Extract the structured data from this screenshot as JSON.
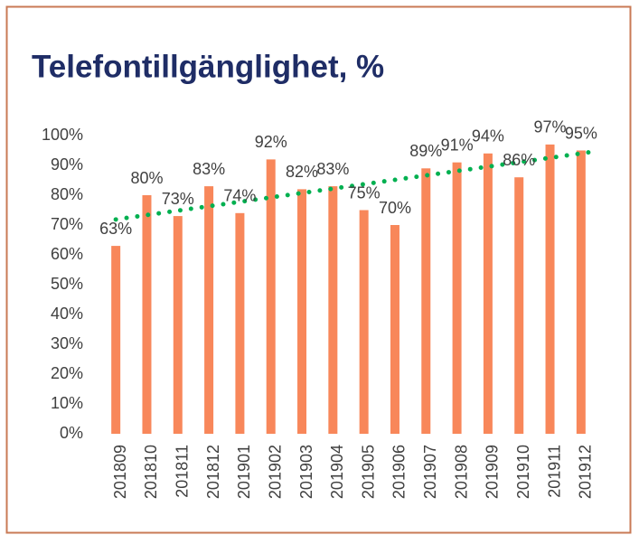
{
  "chart_data": {
    "type": "bar",
    "title": "Telefontillgänglighet, %",
    "categories": [
      "201809",
      "201810",
      "201811",
      "201812",
      "201901",
      "201902",
      "201903",
      "201904",
      "201905",
      "201906",
      "201907",
      "201908",
      "201909",
      "201910",
      "201911",
      "201912"
    ],
    "values": [
      63,
      80,
      73,
      83,
      74,
      92,
      82,
      83,
      75,
      70,
      89,
      91,
      94,
      86,
      97,
      95
    ],
    "value_labels": [
      "63%",
      "80%",
      "73%",
      "83%",
      "74%",
      "92%",
      "82%",
      "83%",
      "75%",
      "70%",
      "89%",
      "91%",
      "94%",
      "86%",
      "97%",
      "95%"
    ],
    "color": "#f8875a",
    "ylim": [
      0,
      100
    ],
    "yticks": [
      {
        "value": 0,
        "label": "0%"
      },
      {
        "value": 10,
        "label": "10%"
      },
      {
        "value": 20,
        "label": "20%"
      },
      {
        "value": 30,
        "label": "30%"
      },
      {
        "value": 40,
        "label": "40%"
      },
      {
        "value": 50,
        "label": "50%"
      },
      {
        "value": 60,
        "label": "60%"
      },
      {
        "value": 70,
        "label": "70%"
      },
      {
        "value": 80,
        "label": "80%"
      },
      {
        "value": 90,
        "label": "90%"
      },
      {
        "value": 100,
        "label": "100%"
      }
    ],
    "grid": false,
    "trendline": "linear",
    "trendline_color": "#00b050"
  }
}
